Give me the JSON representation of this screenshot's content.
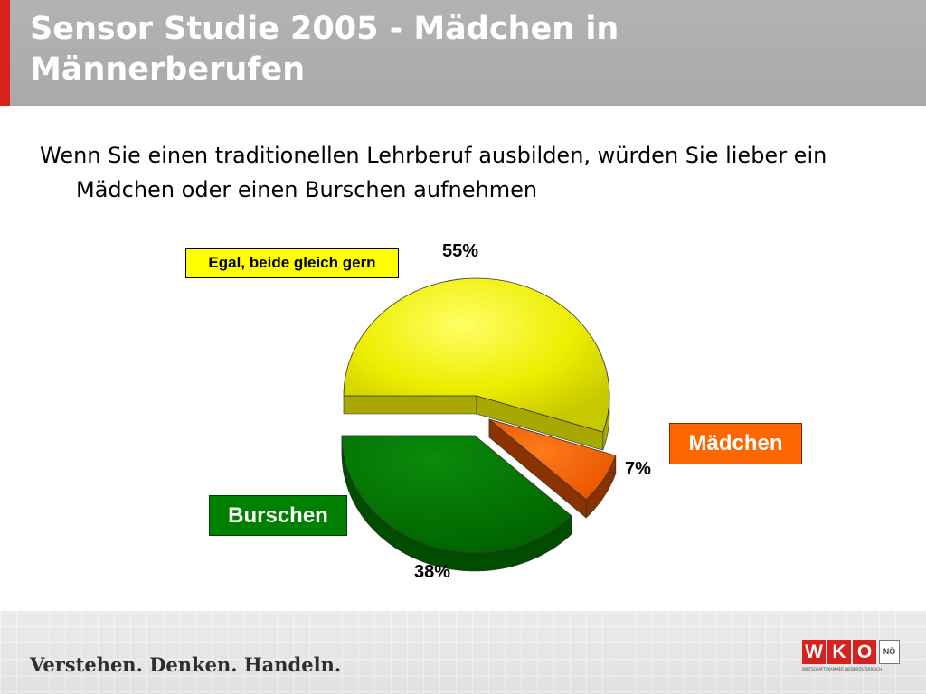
{
  "header": {
    "title": "Sensor Studie 2005 - Mädchen in Männerberufen"
  },
  "question": "Wenn Sie einen traditionellen Lehrberuf ausbilden, würden Sie lieber ein Mädchen oder einen Burschen aufnehmen",
  "chart_data": {
    "type": "pie",
    "title": "",
    "legend": "none",
    "series": [
      {
        "categories": [
          "Egal, beide gleich gern",
          "Mädchen",
          "Burschen"
        ],
        "values": [
          55,
          7,
          38
        ],
        "labels": [
          "55%",
          "7%",
          "38%"
        ],
        "colors": [
          "#ffff00",
          "#ff6600",
          "#008000"
        ]
      }
    ]
  },
  "footer": {
    "slogan": "Verstehen. Denken. Handeln.",
    "logo": {
      "letters": [
        "W",
        "K",
        "O"
      ],
      "region": "NÖ",
      "subtitle": "WIRTSCHAFTSKAMMER NIEDERÖSTERREICH",
      "accent_color": "#d6211f"
    }
  }
}
